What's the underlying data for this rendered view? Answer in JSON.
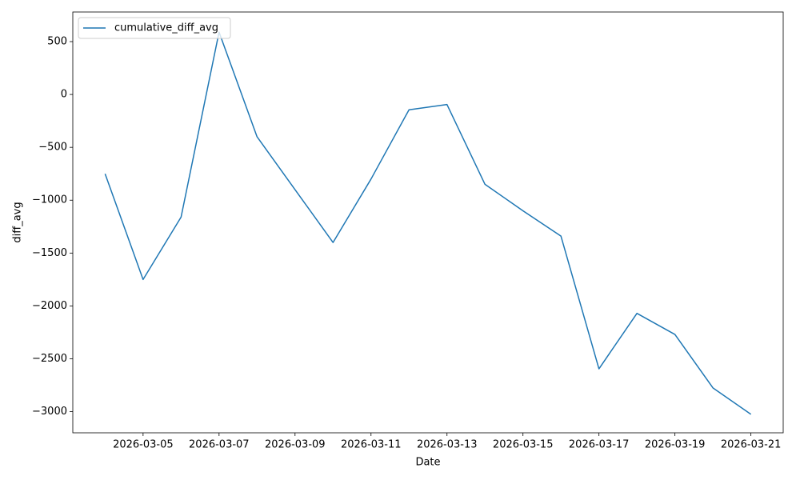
{
  "chart_data": {
    "type": "line",
    "x_label": "Date",
    "y_label": "diff_avg",
    "x": [
      "2026-03-04",
      "2026-03-05",
      "2026-03-06",
      "2026-03-07",
      "2026-03-08",
      "2026-03-09",
      "2026-03-10",
      "2026-03-11",
      "2026-03-12",
      "2026-03-13",
      "2026-03-14",
      "2026-03-15",
      "2026-03-16",
      "2026-03-17",
      "2026-03-18",
      "2026-03-19",
      "2026-03-20",
      "2026-03-21"
    ],
    "series": [
      {
        "name": "cumulative_diff_avg",
        "color": "#1f77b4",
        "values": [
          -750,
          -1750,
          -1160,
          590,
          -400,
          -900,
          -1400,
          -800,
          -145,
          -95,
          -850,
          -1100,
          -1340,
          -2595,
          -2070,
          -2270,
          -2775,
          -3025
        ]
      }
    ],
    "xlim": [
      "2026-03-03T03:36",
      "2026-03-21T20:24"
    ],
    "xticks": [
      "2026-03-05",
      "2026-03-07",
      "2026-03-09",
      "2026-03-11",
      "2026-03-13",
      "2026-03-15",
      "2026-03-17",
      "2026-03-19",
      "2026-03-21"
    ],
    "ylim": [
      -3200,
      780
    ],
    "yticks": [
      500,
      0,
      {
        "value": -500,
        "label": "−500"
      },
      {
        "value": -1000,
        "label": "−1000"
      },
      {
        "value": -1500,
        "label": "−1500"
      },
      {
        "value": -2000,
        "label": "−2000"
      },
      {
        "value": -2500,
        "label": "−2500"
      },
      {
        "value": -3000,
        "label": "−3000"
      }
    ],
    "legend": "upper left",
    "grid": false
  }
}
